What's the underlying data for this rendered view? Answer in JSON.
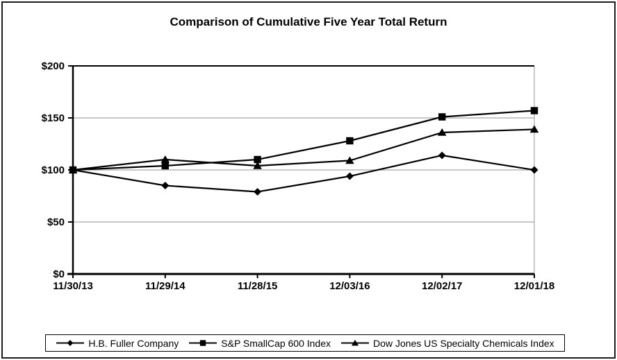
{
  "chart_data": {
    "type": "line",
    "title": "Comparison of Cumulative Five Year Total Return",
    "categories": [
      "11/30/13",
      "11/29/14",
      "11/28/15",
      "12/03/16",
      "12/02/17",
      "12/01/18"
    ],
    "series": [
      {
        "name": "H.B. Fuller Company",
        "marker": "diamond",
        "values": [
          100,
          85,
          79,
          94,
          114,
          100
        ]
      },
      {
        "name": "S&P SmallCap 600 Index",
        "marker": "square",
        "values": [
          100,
          104,
          110,
          128,
          151,
          157
        ]
      },
      {
        "name": "Dow Jones US Specialty Chemicals Index",
        "marker": "triangle",
        "values": [
          100,
          110,
          104,
          109,
          136,
          139
        ]
      }
    ],
    "marker_z_order": [
      0,
      2,
      1
    ],
    "y_ticks": [
      {
        "value": 0,
        "label": "$0"
      },
      {
        "value": 50,
        "label": "$50"
      },
      {
        "value": 100,
        "label": "$100"
      },
      {
        "value": 150,
        "label": "$150"
      },
      {
        "value": 200,
        "label": "$200"
      }
    ],
    "ylim": [
      0,
      200
    ],
    "grid": "horizontal",
    "legend_position": "bottom",
    "colors": {
      "series_line": "#000000",
      "marker_fill": "#000000",
      "grid": "#a6a6a6",
      "axis": "#000000",
      "plot_border_right": "#a6a6a6",
      "background": "#ffffff"
    }
  }
}
